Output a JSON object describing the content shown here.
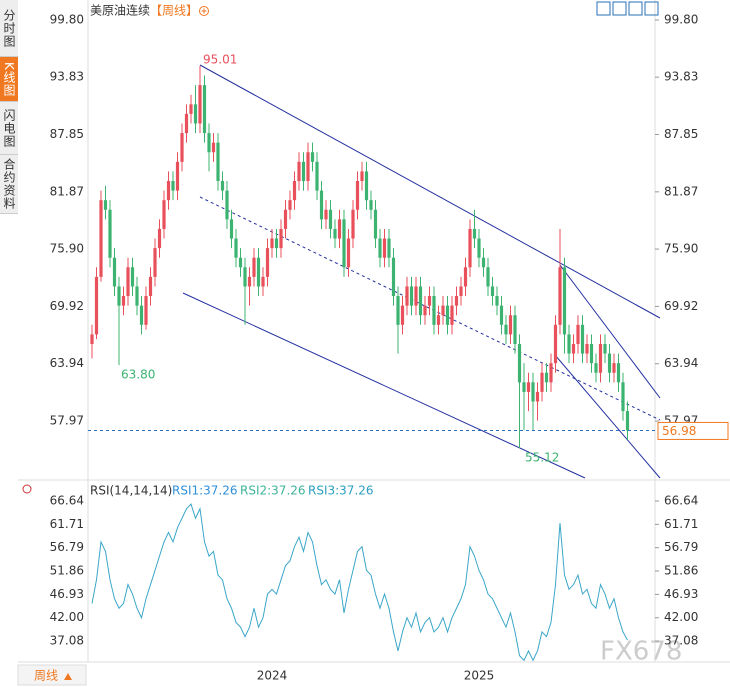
{
  "chart_data": [
    {
      "type": "candlestick",
      "title": "美原油连续",
      "period": "【周线】",
      "up_color": "#e8505b",
      "down_color": "#3cb371",
      "categories": [
        null,
        null,
        null,
        null,
        null,
        null,
        null,
        null,
        null,
        null,
        null,
        null,
        null,
        null,
        null,
        null,
        null,
        null,
        null,
        null,
        null,
        null,
        null,
        null,
        null,
        null,
        null,
        null,
        null,
        null,
        null,
        null,
        null,
        null,
        null,
        null,
        null,
        null,
        null,
        null,
        "2024",
        null,
        null,
        null,
        null,
        null,
        null,
        null,
        null,
        null,
        null,
        null,
        null,
        null,
        null,
        null,
        null,
        null,
        null,
        null,
        null,
        null,
        null,
        null,
        null,
        null,
        null,
        null,
        null,
        null,
        null,
        null,
        null,
        null,
        null,
        null,
        null,
        null,
        null,
        null,
        null,
        null,
        null,
        null,
        null,
        null,
        "2025",
        null,
        null,
        null,
        null,
        null,
        null,
        null,
        null,
        null,
        null,
        null,
        null,
        null,
        null,
        null,
        null,
        null,
        null,
        null,
        null,
        null,
        null,
        null,
        null,
        null,
        null,
        null,
        null,
        null,
        null,
        null,
        null,
        null,
        null,
        null
      ],
      "candles": [
        [
          66,
          68,
          64.5,
          67
        ],
        [
          67,
          74,
          66.5,
          73
        ],
        [
          73,
          82,
          72.5,
          81
        ],
        [
          81,
          82.5,
          79,
          80
        ],
        [
          80,
          81,
          74,
          75
        ],
        [
          75,
          76,
          71,
          72
        ],
        [
          72,
          73,
          63.8,
          70
        ],
        [
          70,
          72,
          69,
          71
        ],
        [
          71,
          75,
          70,
          74
        ],
        [
          74,
          75,
          71,
          72
        ],
        [
          72,
          73,
          69,
          70
        ],
        [
          70,
          71,
          67,
          68
        ],
        [
          68,
          72,
          67.5,
          71
        ],
        [
          71,
          74,
          70,
          73
        ],
        [
          73,
          77,
          72,
          76
        ],
        [
          76,
          79,
          75,
          78
        ],
        [
          78,
          82,
          77,
          81
        ],
        [
          81,
          84,
          80,
          83
        ],
        [
          83,
          84,
          81,
          82
        ],
        [
          82,
          86,
          81,
          85
        ],
        [
          85,
          89,
          84,
          88
        ],
        [
          88,
          91,
          87,
          90
        ],
        [
          90,
          92,
          89,
          91
        ],
        [
          91,
          93,
          88,
          89
        ],
        [
          89,
          95.01,
          88,
          93
        ],
        [
          93,
          94,
          87,
          88
        ],
        [
          88,
          89,
          84,
          86
        ],
        [
          86,
          88,
          85,
          87
        ],
        [
          87,
          88,
          82,
          83
        ],
        [
          83,
          84,
          81,
          82
        ],
        [
          82,
          83,
          78,
          79
        ],
        [
          79,
          80,
          76,
          77
        ],
        [
          77,
          78,
          74,
          75
        ],
        [
          75,
          76,
          73,
          74
        ],
        [
          74,
          75,
          68,
          72
        ],
        [
          72,
          74,
          70,
          73
        ],
        [
          73,
          76,
          72,
          75
        ],
        [
          75,
          76,
          71,
          72
        ],
        [
          72,
          74,
          71,
          73
        ],
        [
          73,
          77,
          72,
          76
        ],
        [
          76,
          78,
          75,
          77
        ],
        [
          77,
          78,
          75,
          76
        ],
        [
          76,
          79,
          75,
          78
        ],
        [
          78,
          81,
          77,
          80
        ],
        [
          80,
          82,
          79,
          81
        ],
        [
          81,
          84,
          80,
          83
        ],
        [
          83,
          86,
          82,
          85
        ],
        [
          85,
          86,
          82,
          83
        ],
        [
          83,
          87,
          82,
          86
        ],
        [
          86,
          87,
          84,
          85
        ],
        [
          85,
          86,
          81,
          82
        ],
        [
          82,
          83,
          78,
          79
        ],
        [
          79,
          81,
          78,
          80
        ],
        [
          80,
          81,
          77,
          78
        ],
        [
          78,
          79,
          76,
          77
        ],
        [
          77,
          80,
          76,
          79
        ],
        [
          79,
          80,
          73,
          74
        ],
        [
          74,
          78,
          73,
          77
        ],
        [
          77,
          81,
          76,
          80
        ],
        [
          80,
          84,
          79,
          83
        ],
        [
          83,
          85,
          82,
          84
        ],
        [
          84,
          85,
          80,
          81
        ],
        [
          81,
          82,
          79,
          80
        ],
        [
          80,
          81,
          76,
          77
        ],
        [
          77,
          78,
          74,
          75
        ],
        [
          75,
          78,
          74,
          77
        ],
        [
          77,
          78,
          74,
          75
        ],
        [
          75,
          76,
          70,
          71
        ],
        [
          71,
          72,
          65,
          68
        ],
        [
          68,
          71,
          67,
          70
        ],
        [
          70,
          73,
          69,
          72
        ],
        [
          72,
          73,
          69,
          70
        ],
        [
          70,
          73,
          69,
          72
        ],
        [
          72,
          73,
          68,
          69
        ],
        [
          69,
          71,
          68,
          70
        ],
        [
          70,
          72,
          69,
          71
        ],
        [
          71,
          72,
          67,
          68
        ],
        [
          68,
          70,
          67,
          69
        ],
        [
          69,
          71,
          68,
          70
        ],
        [
          70,
          71,
          67,
          68
        ],
        [
          68,
          71,
          67,
          70
        ],
        [
          70,
          72,
          69,
          71
        ],
        [
          71,
          73,
          70,
          72
        ],
        [
          72,
          75,
          71,
          74
        ],
        [
          74,
          79,
          73,
          78
        ],
        [
          78,
          80,
          76,
          77
        ],
        [
          77,
          78,
          74,
          75
        ],
        [
          75,
          76,
          73,
          74
        ],
        [
          74,
          75,
          71,
          72
        ],
        [
          72,
          73,
          70,
          71
        ],
        [
          71,
          72,
          69,
          70
        ],
        [
          70,
          71,
          67,
          68
        ],
        [
          68,
          69,
          66,
          67
        ],
        [
          67,
          70,
          66,
          69
        ],
        [
          69,
          70,
          65,
          66
        ],
        [
          66,
          67,
          55.12,
          62
        ],
        [
          62,
          64,
          57,
          61
        ],
        [
          61,
          63,
          59,
          62
        ],
        [
          62,
          63,
          57,
          60
        ],
        [
          60,
          62,
          58,
          61
        ],
        [
          61,
          64,
          60,
          63
        ],
        [
          63,
          64,
          61,
          62
        ],
        [
          62,
          65,
          61,
          64
        ],
        [
          64,
          69,
          63,
          68
        ],
        [
          68,
          78,
          67,
          74
        ],
        [
          74,
          75,
          65,
          67
        ],
        [
          67,
          68,
          64,
          65
        ],
        [
          65,
          67,
          64,
          66
        ],
        [
          66,
          69,
          65,
          68
        ],
        [
          68,
          69,
          64,
          65
        ],
        [
          65,
          67,
          64,
          66
        ],
        [
          66,
          67,
          63,
          64
        ],
        [
          64,
          65,
          62,
          63
        ],
        [
          63,
          67,
          62,
          66
        ],
        [
          66,
          67,
          64,
          65
        ],
        [
          65,
          66,
          62,
          63
        ],
        [
          63,
          65,
          62,
          64
        ],
        [
          64,
          65,
          61,
          62
        ],
        [
          62,
          63,
          58,
          59
        ],
        [
          59,
          60,
          56,
          56.98
        ]
      ],
      "ylim": [
        52.02,
        101.36
      ],
      "yticks": [
        {
          "value": 99.8,
          "label": "99.80"
        },
        93.83,
        87.85,
        81.87,
        {
          "value": 75.9,
          "label": "75.90"
        },
        69.92,
        63.94,
        57.97
      ],
      "annotations": [
        {
          "text": "95.01",
          "color": "#e8505b"
        },
        {
          "text": "63.80",
          "color": "#3cb371"
        },
        {
          "text": "55.12",
          "color": "#3cb371"
        }
      ],
      "last_price": 56.98,
      "last_color": "#f07820",
      "grid": false
    },
    {
      "type": "line",
      "title": "RSI(14,14,14)",
      "legend": [
        {
          "text": "RSI1:37.26",
          "color": "#2f8fd8"
        },
        {
          "text": "RSI2:37.26",
          "color": "#3fb39a"
        },
        {
          "text": "RSI3:37.26",
          "color": "#2aa0c0"
        }
      ],
      "series": [
        {
          "color": "#3aa6c9",
          "values": [
            45,
            50,
            58,
            56,
            50,
            46,
            44,
            45,
            49,
            47,
            44,
            42,
            46,
            49,
            52,
            55,
            58,
            60,
            58,
            61,
            63,
            65,
            66,
            63,
            65,
            58,
            55,
            56,
            51,
            50,
            46,
            44,
            41,
            40,
            38,
            40,
            44,
            40,
            42,
            47,
            48,
            47,
            50,
            53,
            54,
            57,
            59,
            56,
            60,
            58,
            53,
            49,
            50,
            48,
            47,
            50,
            43,
            48,
            52,
            56,
            57,
            52,
            51,
            47,
            44,
            47,
            44,
            39,
            35,
            39,
            42,
            40,
            43,
            39,
            41,
            42,
            39,
            40,
            42,
            39,
            42,
            44,
            46,
            49,
            57,
            55,
            52,
            50,
            47,
            46,
            44,
            42,
            40,
            43,
            39,
            34,
            33,
            35,
            33,
            35,
            39,
            38,
            41,
            49,
            62,
            51,
            48,
            49,
            51,
            47,
            48,
            45,
            44,
            49,
            47,
            44,
            46,
            42,
            39,
            37.26
          ]
        }
      ],
      "ylim": [
        32.65,
        70.02
      ],
      "yticks": [
        66.64,
        61.71,
        56.79,
        51.86,
        46.93,
        {
          "value": 42,
          "label": "42.00"
        },
        37.08
      ],
      "grid": false
    }
  ],
  "tabs": [
    "分时图",
    "K线图",
    "闪电图",
    "合约资料"
  ],
  "period_button": "周线",
  "watermark": "FX678"
}
